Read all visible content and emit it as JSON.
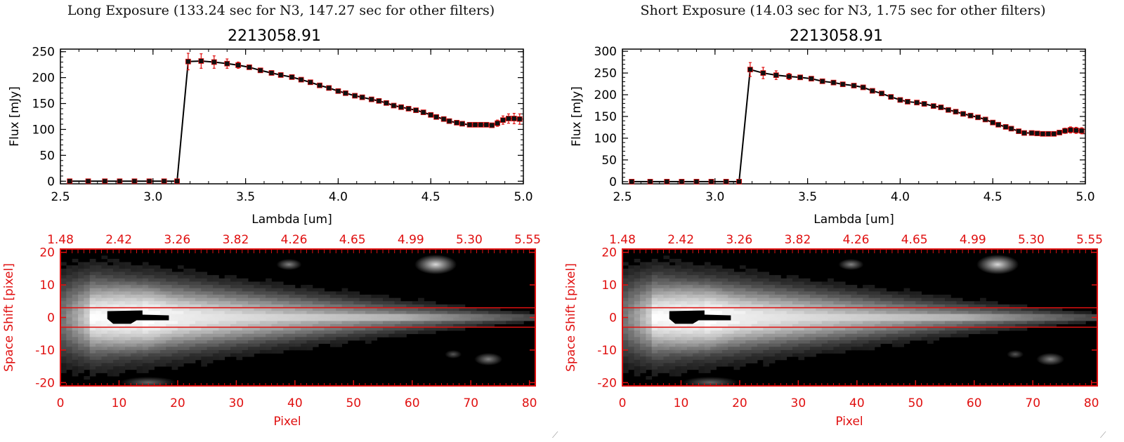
{
  "panels": [
    {
      "id": "left",
      "title": "Long Exposure (133.24 sec for N3, 147.27 sec for other filters)",
      "object_label": "2213058.91",
      "spectrum": {
        "xlabel": "Lambda [um]",
        "ylabel": "Flux [mJy]",
        "xlim": [
          2.5,
          5.0
        ],
        "ylim": [
          -5,
          255
        ],
        "xticks": [
          "2.5",
          "3.0",
          "3.5",
          "4.0",
          "4.5",
          "5.0"
        ],
        "xtick_values": [
          2.5,
          3.0,
          3.5,
          4.0,
          4.5,
          5.0
        ],
        "yticks": [
          "0",
          "50",
          "100",
          "150",
          "200",
          "250"
        ],
        "ytick_values": [
          0,
          50,
          100,
          150,
          200,
          250
        ]
      },
      "image": {
        "xlabel": "Pixel",
        "ylabel": "Space Shift [pixel]",
        "xticks": [
          "0",
          "10",
          "20",
          "30",
          "40",
          "50",
          "60",
          "70",
          "80"
        ],
        "yticks": [
          "20",
          "10",
          "0",
          "-10",
          "-20"
        ],
        "top_ticks": [
          "1.48",
          "2.42",
          "3.26",
          "3.82",
          "4.26",
          "4.65",
          "4.99",
          "5.30",
          "5.55"
        ]
      }
    },
    {
      "id": "right",
      "title": "Short Exposure (14.03 sec for N3, 1.75 sec for other filters)",
      "object_label": "2213058.91",
      "spectrum": {
        "xlabel": "Lambda [um]",
        "ylabel": "Flux [mJy]",
        "xlim": [
          2.5,
          5.0
        ],
        "ylim": [
          -5,
          305
        ],
        "xticks": [
          "2.5",
          "3.0",
          "3.5",
          "4.0",
          "4.5",
          "5.0"
        ],
        "xtick_values": [
          2.5,
          3.0,
          3.5,
          4.0,
          4.5,
          5.0
        ],
        "yticks": [
          "0",
          "50",
          "100",
          "150",
          "200",
          "250",
          "300"
        ],
        "ytick_values": [
          0,
          50,
          100,
          150,
          200,
          250,
          300
        ]
      },
      "image": {
        "xlabel": "Pixel",
        "ylabel": "Space Shift [pixel]",
        "xticks": [
          "0",
          "10",
          "20",
          "30",
          "40",
          "50",
          "60",
          "70",
          "80"
        ],
        "yticks": [
          "20",
          "10",
          "0",
          "-10",
          "-20"
        ],
        "top_ticks": [
          "1.48",
          "2.42",
          "3.26",
          "3.82",
          "4.26",
          "4.65",
          "4.99",
          "5.30",
          "5.55"
        ]
      }
    }
  ],
  "chart_data": [
    {
      "type": "scatter",
      "title": "2213058.91",
      "xlabel": "Lambda [um]",
      "ylabel": "Flux [mJy]",
      "xlim": [
        2.5,
        5.0
      ],
      "ylim": [
        -5,
        255
      ],
      "series": [
        {
          "x": [
            2.55,
            2.65,
            2.74,
            2.82,
            2.9,
            2.98,
            3.06,
            3.13,
            3.19,
            3.26,
            3.33,
            3.4,
            3.46,
            3.52,
            3.58,
            3.64,
            3.69,
            3.75,
            3.8,
            3.85,
            3.9,
            3.95,
            4.0,
            4.04,
            4.09,
            4.13,
            4.18,
            4.22,
            4.26,
            4.3,
            4.34,
            4.38,
            4.42,
            4.46,
            4.5,
            4.53,
            4.57,
            4.6,
            4.64,
            4.67,
            4.71,
            4.74,
            4.77,
            4.8,
            4.83,
            4.86,
            4.89,
            4.92,
            4.95,
            4.98
          ],
          "y": [
            0,
            0,
            0,
            0,
            0,
            0,
            0,
            0,
            231,
            232,
            230,
            227,
            224,
            220,
            214,
            209,
            205,
            201,
            196,
            191,
            185,
            180,
            174,
            170,
            165,
            162,
            158,
            155,
            151,
            146,
            143,
            140,
            137,
            133,
            128,
            124,
            120,
            116,
            113,
            111,
            109,
            109,
            109,
            109,
            108,
            112,
            118,
            121,
            121,
            120
          ],
          "err": [
            0,
            0,
            0,
            0,
            0,
            0,
            0,
            0,
            16,
            14,
            12,
            9,
            6,
            4,
            3,
            3,
            2,
            2,
            2,
            2,
            2,
            2,
            2,
            2,
            2,
            2,
            2,
            2,
            2,
            2,
            2,
            2,
            2,
            2,
            2,
            2,
            2,
            2,
            2,
            2,
            2,
            2,
            3,
            3,
            4,
            6,
            8,
            9,
            10,
            10
          ]
        }
      ]
    },
    {
      "type": "scatter",
      "title": "2213058.91",
      "xlabel": "Lambda [um]",
      "ylabel": "Flux [mJy]",
      "xlim": [
        2.5,
        5.0
      ],
      "ylim": [
        -5,
        305
      ],
      "series": [
        {
          "x": [
            2.55,
            2.65,
            2.74,
            2.82,
            2.9,
            2.98,
            3.06,
            3.13,
            3.19,
            3.26,
            3.33,
            3.4,
            3.46,
            3.52,
            3.58,
            3.64,
            3.69,
            3.75,
            3.8,
            3.85,
            3.9,
            3.95,
            4.0,
            4.04,
            4.09,
            4.13,
            4.18,
            4.22,
            4.26,
            4.3,
            4.34,
            4.38,
            4.42,
            4.46,
            4.5,
            4.53,
            4.57,
            4.6,
            4.64,
            4.67,
            4.71,
            4.74,
            4.77,
            4.8,
            4.83,
            4.86,
            4.89,
            4.92,
            4.95,
            4.98
          ],
          "y": [
            0,
            0,
            0,
            0,
            0,
            0,
            0,
            0,
            258,
            250,
            245,
            242,
            240,
            237,
            231,
            228,
            224,
            221,
            217,
            209,
            203,
            195,
            188,
            184,
            182,
            179,
            174,
            171,
            165,
            161,
            156,
            152,
            148,
            143,
            136,
            131,
            126,
            122,
            116,
            112,
            112,
            111,
            110,
            110,
            110,
            113,
            117,
            119,
            118,
            117
          ],
          "err": [
            0,
            0,
            0,
            0,
            0,
            0,
            0,
            0,
            16,
            13,
            10,
            7,
            5,
            4,
            3,
            3,
            3,
            3,
            3,
            3,
            3,
            3,
            3,
            3,
            3,
            3,
            3,
            3,
            3,
            3,
            3,
            3,
            3,
            3,
            3,
            3,
            3,
            3,
            3,
            3,
            3,
            3,
            3,
            3,
            4,
            5,
            6,
            7,
            7,
            7
          ]
        }
      ]
    },
    {
      "type": "heatmap",
      "xlabel": "Pixel",
      "ylabel": "Space Shift [pixel]",
      "xlim": [
        0,
        81
      ],
      "ylim": [
        -21,
        21
      ],
      "top_axis_ticks": [
        "1.48",
        "2.42",
        "3.26",
        "3.82",
        "4.26",
        "4.65",
        "4.99",
        "5.30",
        "5.55"
      ],
      "aperture_lines_y": [
        3,
        -3
      ]
    },
    {
      "type": "heatmap",
      "xlabel": "Pixel",
      "ylabel": "Space Shift [pixel]",
      "xlim": [
        0,
        81
      ],
      "ylim": [
        -21,
        21
      ],
      "top_axis_ticks": [
        "1.48",
        "2.42",
        "3.26",
        "3.82",
        "4.26",
        "4.65",
        "4.99",
        "5.30",
        "5.55"
      ],
      "aperture_lines_y": [
        3,
        -3
      ]
    }
  ],
  "colors": {
    "axis": "#000000",
    "accent_red": "#e01010",
    "marker_fill": "#000000",
    "errorbar": "#e01010"
  }
}
